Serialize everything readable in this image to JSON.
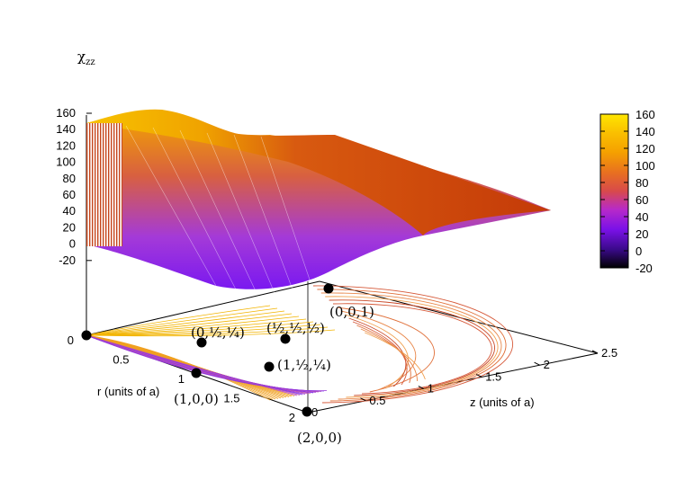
{
  "chart_data": {
    "type": "surface",
    "title": "χzz",
    "title_main": "χ",
    "title_sub": "zz",
    "xlabel": "r (units of a)",
    "ylabel": "z (units of a)",
    "zlim": [
      -20,
      160
    ],
    "z_ticks": [
      "160",
      "140",
      "120",
      "100",
      "80",
      "60",
      "40",
      "20",
      "0",
      "-20"
    ],
    "r_ticks": [
      "0",
      "0.5",
      "1",
      "1.5",
      "2"
    ],
    "z_axis_ticks": [
      "0",
      "0.5",
      "1",
      "1.5",
      "2",
      "2.5"
    ],
    "colorbar": {
      "ticks": [
        "160",
        "140",
        "120",
        "100",
        "80",
        "60",
        "40",
        "20",
        "0",
        "-20"
      ],
      "colors": [
        "#000000",
        "#3a0a8a",
        "#7a11e8",
        "#b72ac8",
        "#d84a4a",
        "#e87020",
        "#f5a000",
        "#fac000",
        "#ffe600"
      ]
    },
    "annotations": [
      "(0,0,1)",
      "(0,½,¼)",
      "(½,½,½)",
      "(1,½,¼)",
      "(1,0,0)",
      "(2,0,0)"
    ]
  }
}
